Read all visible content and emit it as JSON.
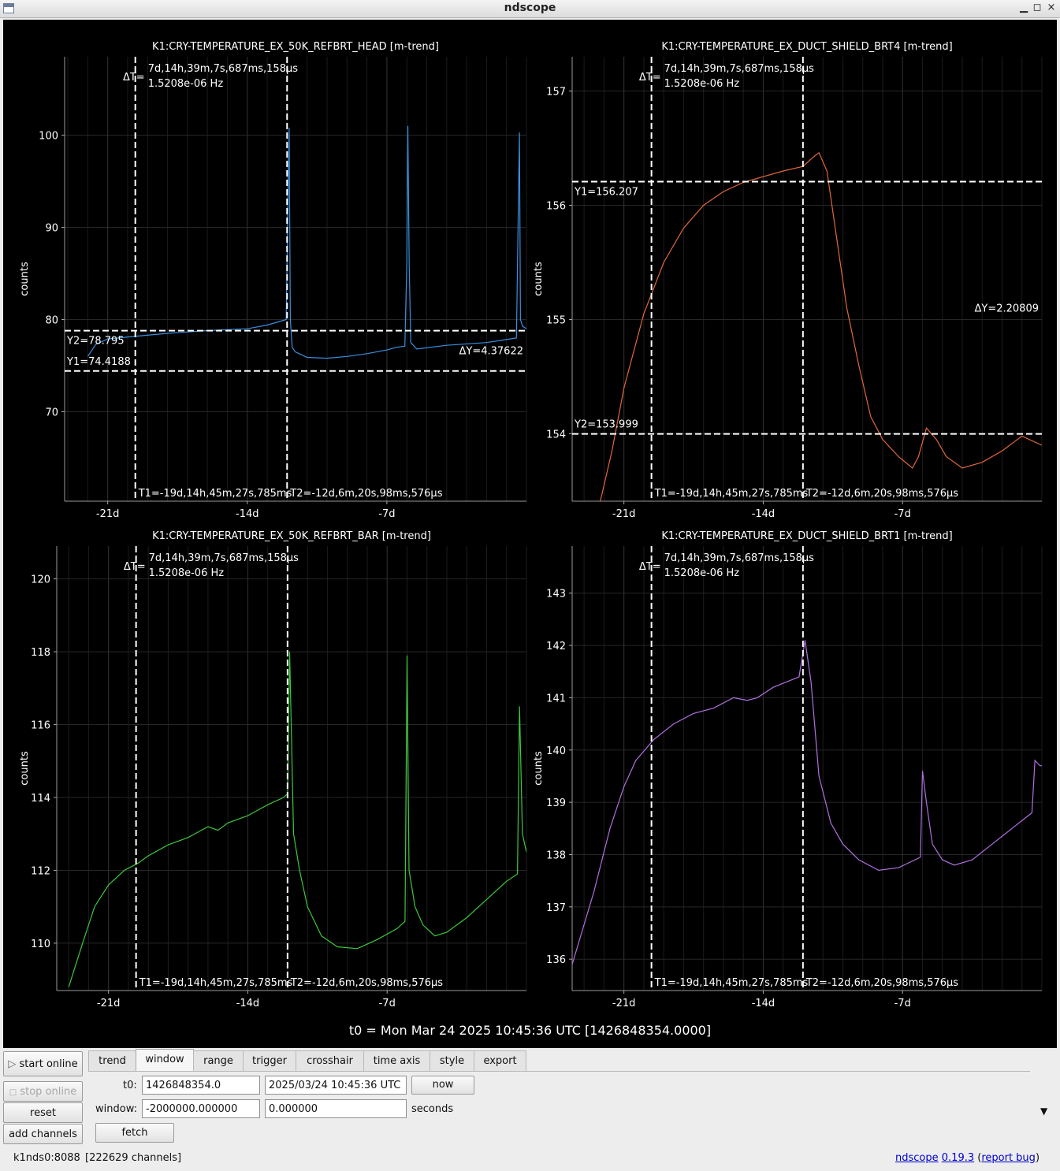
{
  "window": {
    "title": "ndscope",
    "min_glyph": "▁",
    "max_glyph": "◻",
    "close_glyph": "×"
  },
  "t0_text": "t0 = Mon Mar 24 2025 10:45:36 UTC [1426848354.0000]",
  "plots": [
    {
      "title": "K1:CRY-TEMPERATURE_EX_50K_REFBRT_HEAD [m-trend]",
      "ylabel": "counts",
      "color": "#3a8fe0",
      "ylim": [
        60.3,
        108.5
      ],
      "yticks": [
        70,
        80,
        90,
        100
      ],
      "xticks": [
        {
          "label": "-21d",
          "v": -21
        },
        {
          "label": "-14d",
          "v": -14
        },
        {
          "label": "-7d",
          "v": -7
        }
      ],
      "xlim": [
        -23.16,
        0
      ],
      "series": [
        [
          -22,
          76
        ],
        [
          -21.6,
          77.3
        ],
        [
          -21,
          77.9
        ],
        [
          -19.5,
          78.2
        ],
        [
          -18,
          78.5
        ],
        [
          -16,
          78.8
        ],
        [
          -14,
          79.0
        ],
        [
          -13,
          79.4
        ],
        [
          -12.05,
          80.0
        ],
        [
          -11.9,
          100.8
        ],
        [
          -11.84,
          80
        ],
        [
          -11.75,
          77
        ],
        [
          -11.6,
          76.5
        ],
        [
          -11,
          75.9
        ],
        [
          -10,
          75.8
        ],
        [
          -9,
          76
        ],
        [
          -8,
          76.3
        ],
        [
          -7,
          76.7
        ],
        [
          -6.5,
          77.0
        ],
        [
          -6.1,
          77.1
        ],
        [
          -6.0,
          86
        ],
        [
          -5.95,
          101
        ],
        [
          -5.88,
          86
        ],
        [
          -5.8,
          77.5
        ],
        [
          -5.5,
          76.8
        ],
        [
          -4,
          77.2
        ],
        [
          -2,
          77.5
        ],
        [
          -0.5,
          78.0
        ],
        [
          -0.35,
          100.3
        ],
        [
          -0.3,
          80
        ],
        [
          -0.2,
          79.3
        ],
        [
          0,
          79
        ]
      ],
      "cursors": {
        "y1": {
          "label": "Y1=74.4188",
          "v": 74.4188
        },
        "y2": {
          "label": "Y2=78.795",
          "v": 78.795
        },
        "dy": "ΔY=4.37622",
        "t1": {
          "label": "T1=-19d,14h,45m,27s,785ms",
          "v": -19.615
        },
        "t2": {
          "label": "T2=-12d,6m,20s,98ms,576μs",
          "v": -12.004
        },
        "dt_symbol": "ΔT=",
        "dt_value": "7d,14h,39m,7s,687ms,158μs",
        "dt_freq": "1.5208e-06 Hz"
      }
    },
    {
      "title": "K1:CRY-TEMPERATURE_EX_DUCT_SHIELD_BRT4 [m-trend]",
      "ylabel": "counts",
      "color": "#e0683a",
      "ylim": [
        153.41,
        157.3
      ],
      "yticks": [
        154,
        155,
        156,
        157
      ],
      "xticks": [
        {
          "label": "-21d",
          "v": -21
        },
        {
          "label": "-14d",
          "v": -14
        },
        {
          "label": "-7d",
          "v": -7
        }
      ],
      "xlim": [
        -23.6,
        0
      ],
      "series": [
        [
          -22.2,
          153.4
        ],
        [
          -21.6,
          153.85
        ],
        [
          -21,
          154.4
        ],
        [
          -20,
          155.05
        ],
        [
          -19,
          155.5
        ],
        [
          -18,
          155.8
        ],
        [
          -17,
          156.0
        ],
        [
          -16,
          156.12
        ],
        [
          -15,
          156.2
        ],
        [
          -14,
          156.25
        ],
        [
          -13,
          156.3
        ],
        [
          -12,
          156.34
        ],
        [
          -11.5,
          156.42
        ],
        [
          -11.2,
          156.46
        ],
        [
          -10.8,
          156.3
        ],
        [
          -10.3,
          155.7
        ],
        [
          -9.8,
          155.1
        ],
        [
          -9.2,
          154.6
        ],
        [
          -8.6,
          154.15
        ],
        [
          -8,
          153.95
        ],
        [
          -7.2,
          153.8
        ],
        [
          -6.5,
          153.7
        ],
        [
          -6.2,
          153.8
        ],
        [
          -5.8,
          154.05
        ],
        [
          -5.3,
          153.95
        ],
        [
          -4.8,
          153.8
        ],
        [
          -4,
          153.7
        ],
        [
          -3,
          153.75
        ],
        [
          -2,
          153.85
        ],
        [
          -1,
          153.98
        ],
        [
          0,
          153.9
        ]
      ],
      "cursors": {
        "y1": {
          "label": "Y1=156.207",
          "v": 156.207
        },
        "y2": {
          "label": "Y2=153.999",
          "v": 153.999
        },
        "dy": "ΔY=2.20809",
        "t1": {
          "label": "T1=-19d,14h,45m,27s,785ms",
          "v": -19.615
        },
        "t2": {
          "label": "T2=-12d,6m,20s,98ms,576μs",
          "v": -12.004
        },
        "dt_symbol": "ΔT=",
        "dt_value": "7d,14h,39m,7s,687ms,158μs",
        "dt_freq": "1.5208e-06 Hz"
      }
    },
    {
      "title": "K1:CRY-TEMPERATURE_EX_50K_REFBRT_BAR [m-trend]",
      "ylabel": "counts",
      "color": "#3cc83c",
      "ylim": [
        108.7,
        120.9
      ],
      "yticks": [
        110,
        112,
        114,
        116,
        118,
        120
      ],
      "xticks": [
        {
          "label": "-21d",
          "v": -21
        },
        {
          "label": "-14d",
          "v": -14
        },
        {
          "label": "-7d",
          "v": -7
        }
      ],
      "xlim": [
        -23.6,
        0
      ],
      "series": [
        [
          -23,
          108.8
        ],
        [
          -22.3,
          110
        ],
        [
          -21.7,
          111
        ],
        [
          -21,
          111.6
        ],
        [
          -20.2,
          112
        ],
        [
          -19.5,
          112.2
        ],
        [
          -19,
          112.4
        ],
        [
          -18,
          112.7
        ],
        [
          -17,
          112.9
        ],
        [
          -16,
          113.2
        ],
        [
          -15.5,
          113.1
        ],
        [
          -15,
          113.3
        ],
        [
          -14,
          113.5
        ],
        [
          -13,
          113.8
        ],
        [
          -12.2,
          114
        ],
        [
          -12.0,
          114.1
        ],
        [
          -11.9,
          118
        ],
        [
          -11.7,
          113
        ],
        [
          -11.4,
          112
        ],
        [
          -11,
          111
        ],
        [
          -10.3,
          110.2
        ],
        [
          -9.5,
          109.9
        ],
        [
          -8.5,
          109.85
        ],
        [
          -7.5,
          110.1
        ],
        [
          -6.5,
          110.4
        ],
        [
          -6.1,
          110.6
        ],
        [
          -6.0,
          117.9
        ],
        [
          -5.9,
          112
        ],
        [
          -5.6,
          111
        ],
        [
          -5.2,
          110.5
        ],
        [
          -4.6,
          110.2
        ],
        [
          -4,
          110.3
        ],
        [
          -3,
          110.7
        ],
        [
          -2,
          111.2
        ],
        [
          -1,
          111.7
        ],
        [
          -0.45,
          111.9
        ],
        [
          -0.35,
          116.5
        ],
        [
          -0.2,
          113
        ],
        [
          0,
          112.5
        ]
      ],
      "cursors": {
        "t1": {
          "label": "T1=-19d,14h,45m,27s,785ms",
          "v": -19.615
        },
        "t2": {
          "label": "T2=-12d,6m,20s,98ms,576μs",
          "v": -12.004
        },
        "dt_symbol": "ΔT=",
        "dt_value": "7d,14h,39m,7s,687ms,158μs",
        "dt_freq": "1.5208e-06 Hz"
      }
    },
    {
      "title": "K1:CRY-TEMPERATURE_EX_DUCT_SHIELD_BRT1 [m-trend]",
      "ylabel": "counts",
      "color": "#b070e0",
      "ylim": [
        135.4,
        143.9
      ],
      "yticks": [
        136,
        137,
        138,
        139,
        140,
        141,
        142,
        143
      ],
      "xticks": [
        {
          "label": "-21d",
          "v": -21
        },
        {
          "label": "-14d",
          "v": -14
        },
        {
          "label": "-7d",
          "v": -7
        }
      ],
      "xlim": [
        -23.6,
        0
      ],
      "series": [
        [
          -23.6,
          135.9
        ],
        [
          -22.5,
          137.3
        ],
        [
          -21.7,
          138.5
        ],
        [
          -21,
          139.3
        ],
        [
          -20.4,
          139.8
        ],
        [
          -19.5,
          140.2
        ],
        [
          -18.5,
          140.5
        ],
        [
          -17.5,
          140.7
        ],
        [
          -16.5,
          140.8
        ],
        [
          -15.5,
          141.0
        ],
        [
          -14.8,
          140.95
        ],
        [
          -14.3,
          141.0
        ],
        [
          -13.5,
          141.2
        ],
        [
          -12.2,
          141.4
        ],
        [
          -11.9,
          142.1
        ],
        [
          -11.6,
          141.3
        ],
        [
          -11.2,
          139.5
        ],
        [
          -10.6,
          138.6
        ],
        [
          -10,
          138.2
        ],
        [
          -9.2,
          137.9
        ],
        [
          -8.2,
          137.7
        ],
        [
          -7.2,
          137.75
        ],
        [
          -6.1,
          137.95
        ],
        [
          -6.0,
          139.6
        ],
        [
          -5.8,
          139
        ],
        [
          -5.5,
          138.2
        ],
        [
          -5,
          137.9
        ],
        [
          -4.4,
          137.8
        ],
        [
          -3.5,
          137.9
        ],
        [
          -2.5,
          138.2
        ],
        [
          -1.5,
          138.5
        ],
        [
          -0.5,
          138.8
        ],
        [
          -0.35,
          139.8
        ],
        [
          -0.1,
          139.7
        ],
        [
          0,
          139.7
        ]
      ],
      "cursors": {
        "t1": {
          "label": "T1=-19d,14h,45m,27s,785ms",
          "v": -19.615
        },
        "t2": {
          "label": "T2=-12d,6m,20s,98ms,576μs",
          "v": -12.004
        },
        "dt_symbol": "ΔT=",
        "dt_value": "7d,14h,39m,7s,687ms,158μs",
        "dt_freq": "1.5208e-06 Hz"
      }
    }
  ],
  "controls": {
    "start_online": "start online",
    "stop_online": "stop online",
    "reset": "reset",
    "add_channels": "add channels",
    "start_glyph": "▷",
    "stop_glyph": "□"
  },
  "tabs": [
    "trend",
    "window",
    "range",
    "trigger",
    "crosshair",
    "time axis",
    "style",
    "export"
  ],
  "window_panel": {
    "t0_label": "t0:",
    "t0_gps": "1426848354.0",
    "t0_utc": "2025/03/24 10:45:36 UTC",
    "now_button": "now",
    "window_label": "window:",
    "window_start": "-2000000.000000",
    "window_end": "0.000000",
    "units": "seconds",
    "fetch_button": "fetch",
    "collapse_glyph": "▼"
  },
  "status": {
    "server": "k1nds0:8088",
    "channels": "[222629 channels]",
    "app_link": "ndscope",
    "version_link": "0.19.3",
    "bug_open": "(",
    "bug_link": "report bug",
    "bug_close": ")"
  }
}
